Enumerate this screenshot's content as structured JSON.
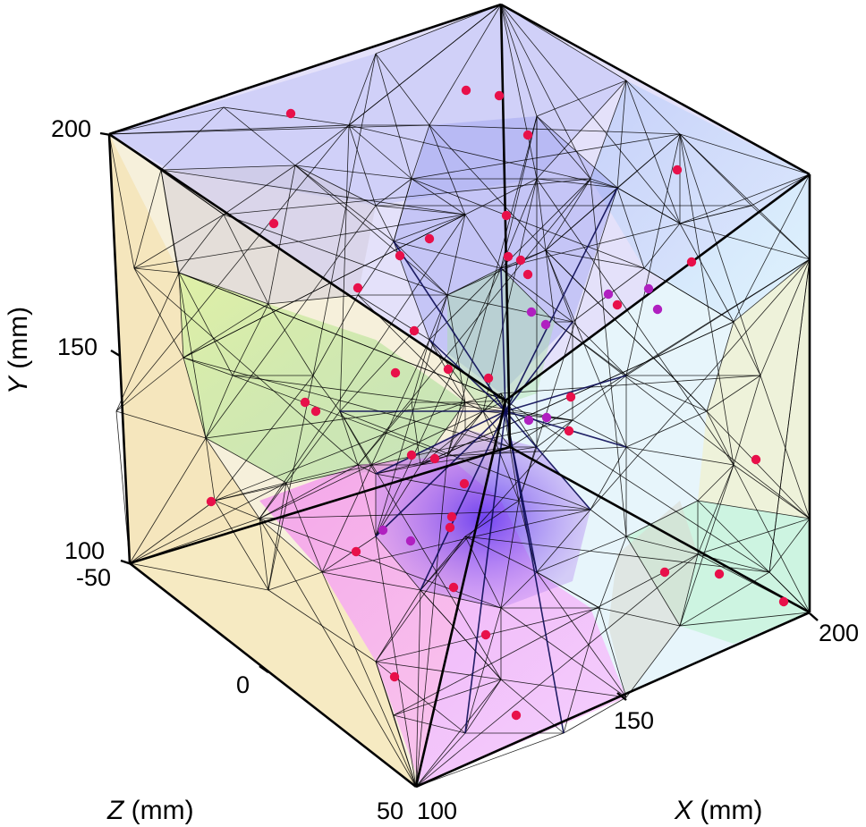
{
  "y_axis": {
    "title_var": "Y",
    "title_unit": " (mm)",
    "ticks": [
      "100",
      "150",
      "200"
    ]
  },
  "z_axis": {
    "title_var": "Z",
    "title_unit": " (mm)",
    "ticks": [
      "-50",
      "0",
      "50"
    ]
  },
  "x_axis": {
    "title_var": "X",
    "title_unit": " (mm)",
    "ticks": [
      "100",
      "150",
      "200"
    ]
  },
  "colors": {
    "point": "#e8104a",
    "point_alt": "#b020c0",
    "top_face": "#c9c4f4",
    "left_face": "#efe3b8",
    "right_face": "#cfe9f6",
    "bottom_left": "#f8d9a0",
    "bottom_right": "#bff2cf",
    "core_purple": "#7a3cf0",
    "magenta": "#f08cf0",
    "green": "#cdeb9a"
  }
}
